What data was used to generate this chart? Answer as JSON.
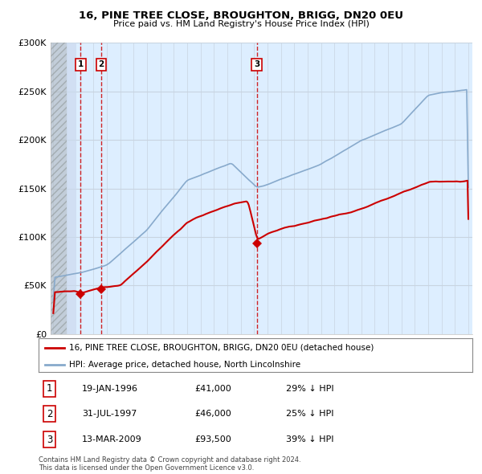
{
  "title1": "16, PINE TREE CLOSE, BROUGHTON, BRIGG, DN20 0EU",
  "title2": "Price paid vs. HM Land Registry's House Price Index (HPI)",
  "legend_line1": "16, PINE TREE CLOSE, BROUGHTON, BRIGG, DN20 0EU (detached house)",
  "legend_line2": "HPI: Average price, detached house, North Lincolnshire",
  "sale_dates": [
    1996.05,
    1997.58,
    2009.2
  ],
  "sale_prices": [
    41000,
    46000,
    93500
  ],
  "sale_labels": [
    "1",
    "2",
    "3"
  ],
  "sale_info": [
    {
      "label": "1",
      "date": "19-JAN-1996",
      "price": "£41,000",
      "pct": "29% ↓ HPI"
    },
    {
      "label": "2",
      "date": "31-JUL-1997",
      "price": "£46,000",
      "pct": "25% ↓ HPI"
    },
    {
      "label": "3",
      "date": "13-MAR-2009",
      "price": "£93,500",
      "pct": "39% ↓ HPI"
    }
  ],
  "footer1": "Contains HM Land Registry data © Crown copyright and database right 2024.",
  "footer2": "This data is licensed under the Open Government Licence v3.0.",
  "hatch_end_year": 1995.0,
  "ylim": [
    0,
    300000
  ],
  "xlim": [
    1993.8,
    2025.3
  ],
  "red_color": "#cc0000",
  "blue_color": "#88aacc",
  "bg_plot": "#ddeeff",
  "bg_hatch": "#cccccc"
}
